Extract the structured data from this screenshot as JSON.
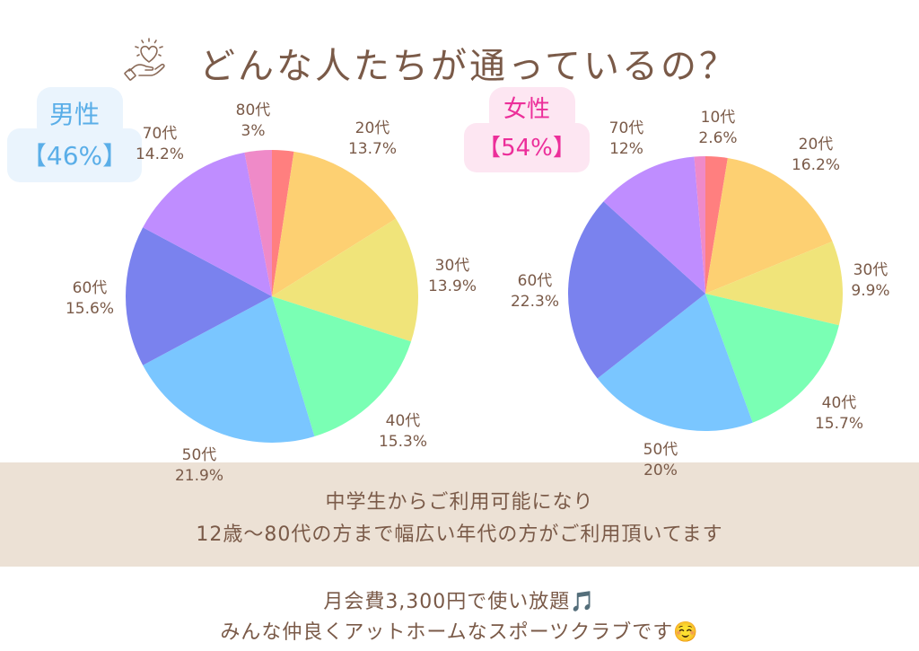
{
  "title": "どんな人たちが通っているの？",
  "title_icon": "heart-in-hand-icon",
  "male": {
    "label": "男性",
    "percent": "【46%】",
    "color": "#5aaee8",
    "badge_bg": "#eaf4fd"
  },
  "female": {
    "label": "女性",
    "percent": "【54%】",
    "color": "#ec2f9a",
    "badge_bg": "#fde6f2"
  },
  "labels": {
    "male": [
      {
        "age": "80代",
        "pct": "3%"
      },
      {
        "age": "20代",
        "pct": "13.7%"
      },
      {
        "age": "70代",
        "pct": "14.2%"
      },
      {
        "age": "30代",
        "pct": "13.9%"
      },
      {
        "age": "60代",
        "pct": "15.6%"
      },
      {
        "age": "40代",
        "pct": "15.3%"
      },
      {
        "age": "50代",
        "pct": "21.9%"
      }
    ],
    "female": [
      {
        "age": "10代",
        "pct": "2.6%"
      },
      {
        "age": "70代",
        "pct": "12%"
      },
      {
        "age": "20代",
        "pct": "16.2%"
      },
      {
        "age": "30代",
        "pct": "9.9%"
      },
      {
        "age": "60代",
        "pct": "22.3%"
      },
      {
        "age": "40代",
        "pct": "15.7%"
      },
      {
        "age": "50代",
        "pct": "20%"
      }
    ]
  },
  "band": {
    "line1": "中学生からご利用可能になり",
    "line2": "12歳〜80代の方まで幅広い年代の方がご利用頂いてます",
    "bg": "#ece1d5"
  },
  "footer": {
    "line1": "月会費3,300円で使い放題🎵",
    "line2": "みんな仲良くアットホームなスポーツクラブです☺️"
  },
  "chart_data": [
    {
      "type": "pie",
      "title": "男性【46%】",
      "categories": [
        "10代",
        "20代",
        "30代",
        "40代",
        "50代",
        "60代",
        "70代",
        "80代"
      ],
      "values": [
        2.4,
        13.7,
        13.9,
        15.3,
        21.9,
        15.6,
        14.2,
        3.0
      ],
      "colors": [
        "#ff7f7f",
        "#fdd072",
        "#f0e47a",
        "#7affb4",
        "#7ac6ff",
        "#7a82ee",
        "#bf8dff",
        "#ef8ac8"
      ],
      "start_angle": "12 o'clock, clockwise",
      "note": "10代 slice unlabeled in image; value inferred as remainder"
    },
    {
      "type": "pie",
      "title": "女性【54%】",
      "categories": [
        "10代",
        "20代",
        "30代",
        "40代",
        "50代",
        "60代",
        "70代",
        "80代"
      ],
      "values": [
        2.6,
        16.2,
        9.9,
        15.7,
        20.0,
        22.3,
        12.0,
        1.3
      ],
      "colors": [
        "#ff7f7f",
        "#fdd072",
        "#f0e47a",
        "#7affb4",
        "#7ac6ff",
        "#7a82ee",
        "#bf8dff",
        "#ef8ac8"
      ],
      "start_angle": "12 o'clock, clockwise",
      "note": "80代 slice unlabeled in image; value inferred as remainder"
    }
  ]
}
